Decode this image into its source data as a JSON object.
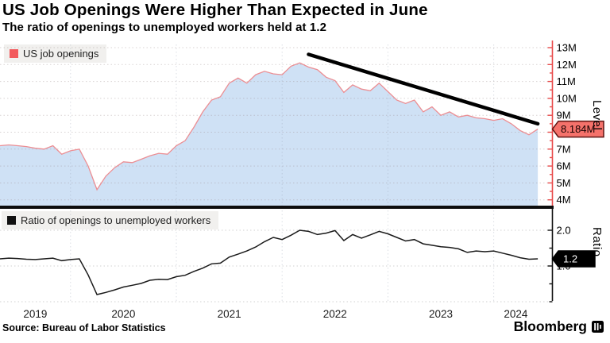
{
  "title": "US Job Openings Were Higher Than Expected in June",
  "subtitle": "The ratio of openings to unemployed workers held at 1.2",
  "source": "Source: Bureau of Labor Statistics",
  "brand": {
    "name": "Bloomberg",
    "icon": "bloomberg-mark-icon"
  },
  "chart_data": [
    {
      "type": "area",
      "panel": "top",
      "legend": "US job openings",
      "line_color": "#ec8e93",
      "fill_color": "#cfe1f5",
      "legend_swatch_color": "#f2595c",
      "x": {
        "start": "2019-05",
        "end": "2024-06",
        "frequency": "monthly",
        "year_labels": [
          "2019",
          "2020",
          "2021",
          "2022",
          "2023",
          "2024"
        ]
      },
      "values": [
        7.2,
        7.25,
        7.2,
        7.15,
        7.05,
        7.0,
        7.2,
        6.7,
        6.9,
        7.0,
        6.0,
        4.6,
        5.4,
        5.9,
        6.25,
        6.2,
        6.4,
        6.6,
        6.75,
        6.7,
        7.2,
        7.5,
        8.3,
        9.2,
        9.9,
        10.1,
        10.9,
        11.2,
        10.9,
        11.4,
        11.6,
        11.45,
        11.4,
        11.9,
        12.1,
        11.85,
        11.7,
        11.25,
        11.05,
        10.35,
        10.8,
        10.55,
        10.45,
        10.9,
        10.4,
        9.9,
        9.7,
        9.9,
        9.2,
        9.5,
        9.0,
        9.2,
        8.9,
        9.0,
        8.85,
        8.8,
        8.7,
        8.8,
        8.5,
        8.1,
        7.85,
        8.184
      ],
      "axis": {
        "side": "right",
        "title": "Level",
        "color": "#e84b4b",
        "range": [
          3.8,
          13.2
        ],
        "minor_tick_step": 0.5,
        "ticks": [
          {
            "v": 13,
            "label": "13M"
          },
          {
            "v": 12,
            "label": "12M"
          },
          {
            "v": 11,
            "label": "11M"
          },
          {
            "v": 10,
            "label": "10M"
          },
          {
            "v": 9,
            "label": "9M"
          },
          {
            "v": 8,
            "label": "8M_hidden"
          },
          {
            "v": 7,
            "label": "7M"
          },
          {
            "v": 6,
            "label": "6M"
          },
          {
            "v": 5,
            "label": "5M"
          },
          {
            "v": 4,
            "label": "4M"
          }
        ],
        "hidden_tick_values": [
          8
        ]
      },
      "last_value_badge": {
        "label": "8.184M",
        "value": 8.184,
        "bg": "#f5726b",
        "border": "#5f1412",
        "text_color": "#160000"
      },
      "annotation_trendline": {
        "color": "#000000",
        "width": 4.5,
        "from": {
          "date": "2022-04",
          "value": 12.6
        },
        "to": {
          "date": "2024-06",
          "value": 8.5
        }
      }
    },
    {
      "type": "line",
      "panel": "bottom",
      "legend": "Ratio of openings to unemployed workers",
      "line_color": "#1a1a1a",
      "legend_swatch_color": "#111111",
      "values": [
        1.2,
        1.22,
        1.21,
        1.19,
        1.18,
        1.2,
        1.22,
        1.15,
        1.18,
        1.2,
        0.75,
        0.2,
        0.26,
        0.33,
        0.41,
        0.46,
        0.51,
        0.6,
        0.63,
        0.62,
        0.7,
        0.74,
        0.85,
        0.94,
        1.06,
        1.08,
        1.25,
        1.33,
        1.42,
        1.53,
        1.68,
        1.8,
        1.74,
        1.86,
        2.0,
        1.97,
        1.88,
        1.92,
        1.99,
        1.71,
        1.88,
        1.78,
        1.87,
        1.97,
        1.9,
        1.8,
        1.7,
        1.74,
        1.62,
        1.58,
        1.54,
        1.52,
        1.48,
        1.38,
        1.42,
        1.4,
        1.42,
        1.36,
        1.3,
        1.23,
        1.19,
        1.2
      ],
      "axis": {
        "side": "right",
        "title": "Ratio",
        "color": "#111111",
        "range": [
          0,
          2.3
        ],
        "tick_marks": [
          0,
          0.5,
          1.0,
          1.5,
          2.0
        ],
        "ticks": [
          {
            "v": 2.0,
            "label": "2.0"
          },
          {
            "v": 1.0,
            "label": "1.0"
          }
        ],
        "grid_values": [
          2.0,
          1.0,
          0.0
        ]
      },
      "last_value_badge": {
        "label": "1.2",
        "value": 1.2,
        "bg": "#000000",
        "border": "#000000",
        "text_color": "#ffffff"
      }
    }
  ]
}
